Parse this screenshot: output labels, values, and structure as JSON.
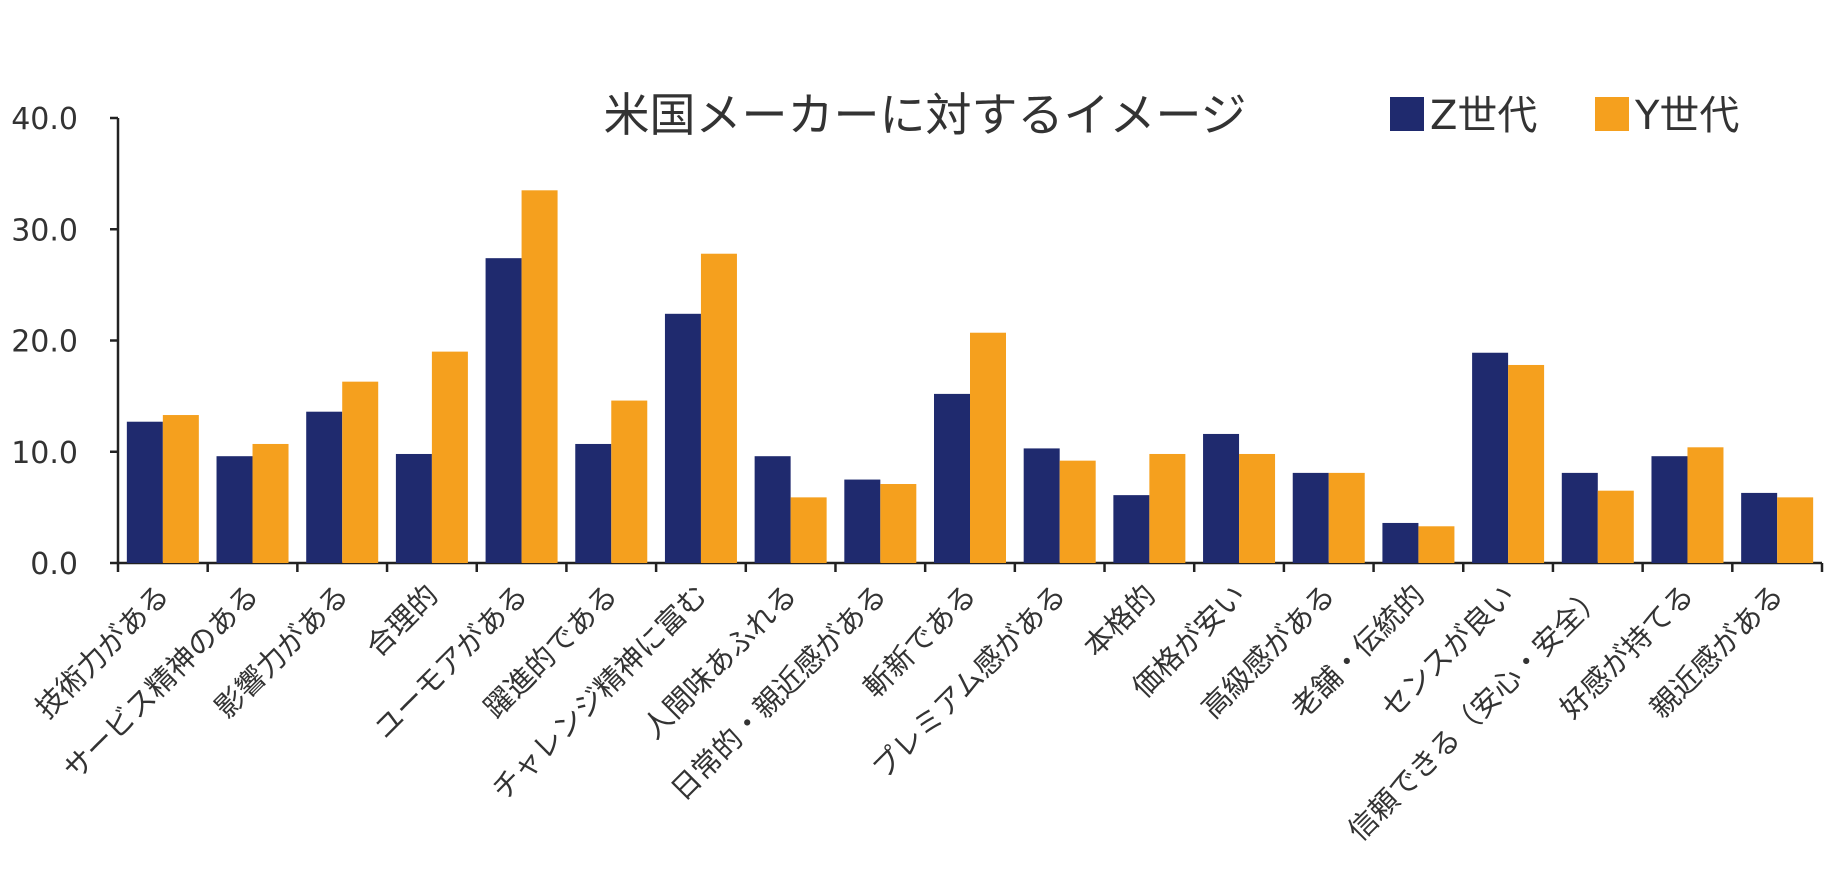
{
  "chart_data": {
    "type": "bar",
    "title": "米国メーカーに対するイメージ",
    "categories": [
      "技術力がある",
      "サービス精神のある",
      "影響力がある",
      "合理的",
      "ユーモアがある",
      "躍進的である",
      "チャレンジ精神に富む",
      "人間味あふれる",
      "日常的・親近感がある",
      "斬新である",
      "プレミアム感がある",
      "本格的",
      "価格が安い",
      "高級感がある",
      "老舗・伝統的",
      "センスが良い",
      "信頼できる（安心・安全）",
      "好感が持てる",
      "親近感がある"
    ],
    "series": [
      {
        "name": "Z世代",
        "color": "#1f2a6e",
        "values": [
          12.7,
          9.6,
          13.6,
          9.8,
          27.4,
          10.7,
          22.4,
          9.6,
          7.5,
          15.2,
          10.3,
          6.1,
          11.6,
          8.1,
          3.6,
          18.9,
          8.1,
          9.6,
          6.3
        ]
      },
      {
        "name": "Y世代",
        "color": "#f5a01e",
        "values": [
          13.3,
          10.7,
          16.3,
          19.0,
          33.5,
          14.6,
          27.8,
          5.9,
          7.1,
          20.7,
          9.2,
          9.8,
          9.8,
          8.1,
          3.3,
          17.8,
          6.5,
          10.4,
          5.9
        ]
      }
    ],
    "ylim": [
      0,
      40
    ],
    "yticks": [
      "0.0",
      "10.0",
      "20.0",
      "30.0",
      "40.0"
    ],
    "xlabel": "",
    "ylabel": "",
    "legend_position": "top-right",
    "grid": false
  }
}
